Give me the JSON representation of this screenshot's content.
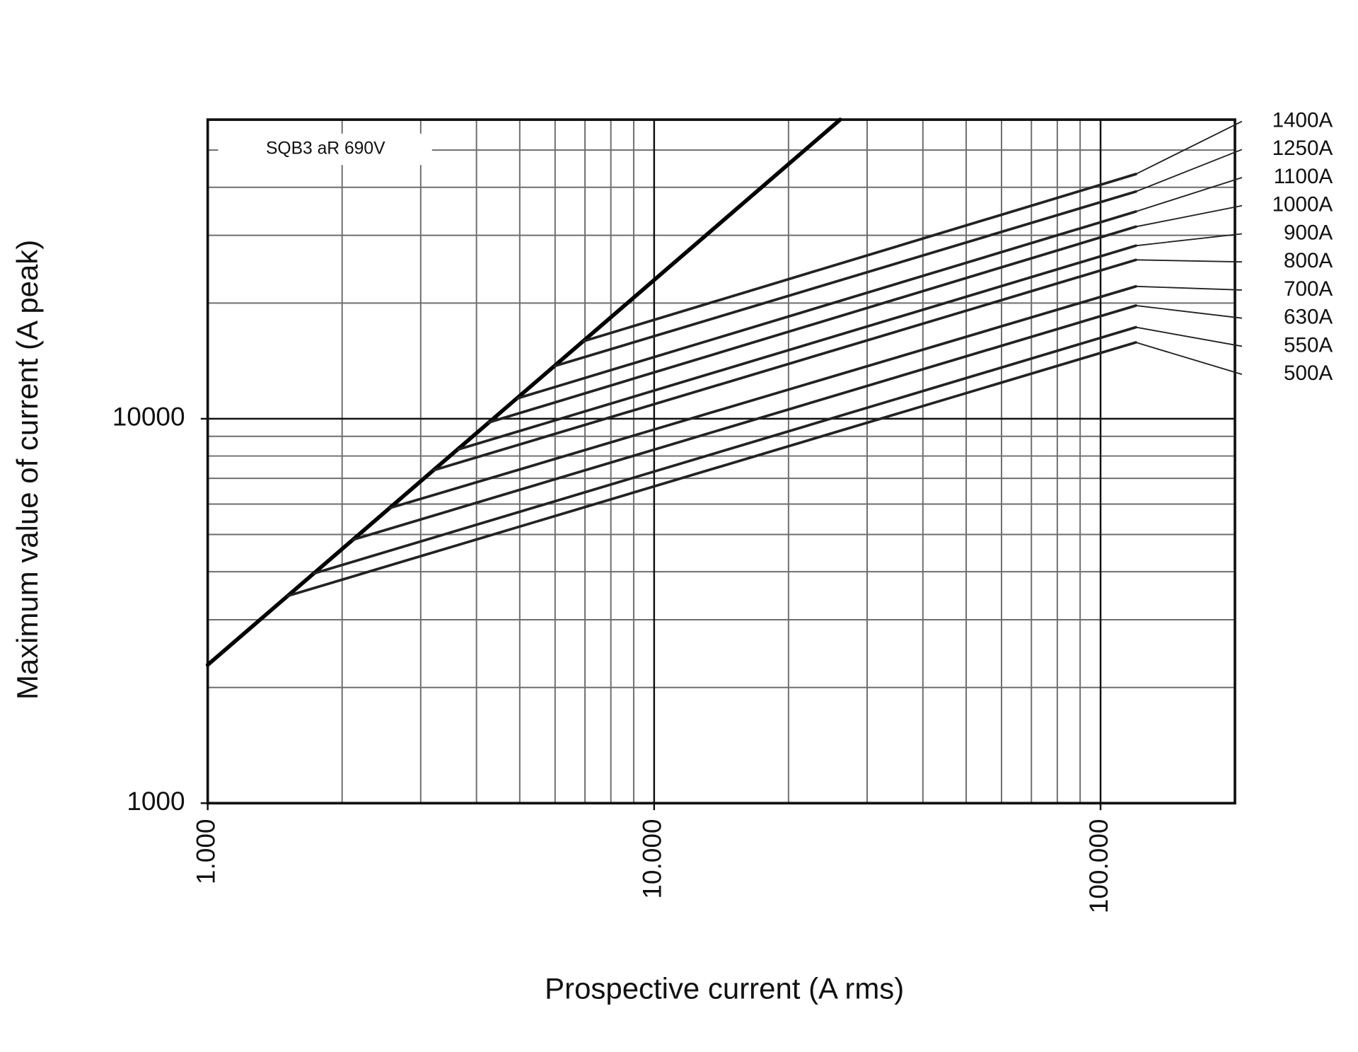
{
  "chart_data": {
    "type": "line",
    "x_axis_label": "Prospective current (A rms)",
    "y_axis_label": "Maximum value of current (A peak)",
    "annotation": "SQB3 aR 690V",
    "log_x": true,
    "log_y": true,
    "grid": true,
    "xlim": [
      1000,
      200000
    ],
    "ylim": [
      1000,
      60000
    ],
    "xticks": [
      {
        "value": 1000,
        "label": "1.000"
      },
      {
        "value": 10000,
        "label": "10.000"
      },
      {
        "value": 100000,
        "label": "100.000"
      }
    ],
    "yticks": [
      1000,
      10000
    ],
    "xminor": [
      2000,
      3000,
      4000,
      5000,
      6000,
      7000,
      8000,
      9000,
      20000,
      30000,
      40000,
      50000,
      60000,
      70000,
      80000,
      90000
    ],
    "yminor": [
      2000,
      3000,
      4000,
      5000,
      6000,
      7000,
      8000,
      9000,
      20000,
      30000,
      40000,
      50000
    ],
    "series": [
      {
        "color": "#000000",
        "line_width": 4.5,
        "x": [
          1000,
          26100
        ],
        "values": [
          2290,
          60000
        ]
      },
      {
        "name": "1400A",
        "color": "#222222",
        "line_width": 3,
        "x": [
          6930,
          120000
        ],
        "values": [
          15900,
          43300
        ]
      },
      {
        "name": "1250A",
        "color": "#222222",
        "line_width": 3,
        "x": [
          5970,
          120000
        ],
        "values": [
          13700,
          39000
        ]
      },
      {
        "name": "1100A",
        "color": "#222222",
        "line_width": 3,
        "x": [
          4940,
          120000
        ],
        "values": [
          11300,
          34600
        ]
      },
      {
        "name": "1000A",
        "color": "#222222",
        "line_width": 3,
        "x": [
          4270,
          120000
        ],
        "values": [
          9790,
          31600
        ]
      },
      {
        "name": "900A",
        "color": "#222222",
        "line_width": 3,
        "x": [
          3640,
          120000
        ],
        "values": [
          8320,
          28200
        ]
      },
      {
        "name": "800A",
        "color": "#222222",
        "line_width": 3,
        "x": [
          3210,
          120000
        ],
        "values": [
          7350,
          25900
        ]
      },
      {
        "name": "700A",
        "color": "#222222",
        "line_width": 3,
        "x": [
          2560,
          120000
        ],
        "values": [
          5860,
          22100
        ]
      },
      {
        "name": "630A",
        "color": "#222222",
        "line_width": 3,
        "x": [
          2120,
          120000
        ],
        "values": [
          4850,
          19700
        ]
      },
      {
        "name": "550A",
        "color": "#222222",
        "line_width": 3,
        "x": [
          1730,
          120000
        ],
        "values": [
          3960,
          17300
        ]
      },
      {
        "name": "500A",
        "color": "#222222",
        "line_width": 3,
        "x": [
          1510,
          120000
        ],
        "values": [
          3460,
          15800
        ]
      }
    ]
  }
}
